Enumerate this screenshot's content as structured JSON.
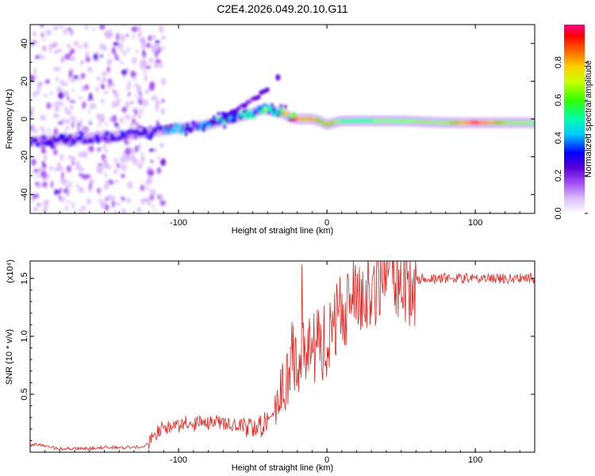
{
  "title": "C2E4.2026.049.20.10.G11",
  "chart_data": [
    {
      "type": "heatmap",
      "title": "C2E4.2026.049.20.10.G11",
      "xlabel": "Height of straight line (km)",
      "ylabel": "Frequency (Hz)",
      "xlim": [
        -200,
        140
      ],
      "ylim": [
        -50,
        50
      ],
      "xticks": [
        -100,
        0,
        100
      ],
      "xtick_labels": [
        "-100",
        "0",
        "100"
      ],
      "yticks": [
        -40,
        -20,
        0,
        20,
        40
      ],
      "ytick_labels": [
        "-40",
        "-20",
        "0",
        "20",
        "40"
      ],
      "colorbar": {
        "label": "Normalized spectral amplitude",
        "range": [
          0,
          1
        ],
        "ticks": [
          0.0,
          0.2,
          0.4,
          0.6,
          0.8
        ],
        "tick_labels": [
          "0.0",
          "0.2",
          "0.4",
          "0.6",
          "0.8"
        ],
        "colormap": [
          "#ffffff",
          "#b27cf5",
          "#5a00d8",
          "#0000ff",
          "#00ffff",
          "#00ff55",
          "#aaff00",
          "#ffff00",
          "#ff7f00",
          "#ff0000",
          "#ff0080"
        ]
      },
      "ridge": {
        "x": [
          -200,
          -180,
          -160,
          -140,
          -120,
          -100,
          -90,
          -80,
          -70,
          -60,
          -50,
          -45,
          -40,
          -35,
          -30,
          -25,
          -20,
          -15,
          -10,
          -5,
          0,
          10,
          30,
          50,
          80,
          100,
          120,
          140
        ],
        "frequency": [
          -12,
          -11,
          -10,
          -9,
          -7,
          -5,
          -4,
          -3,
          -1,
          1,
          3,
          5,
          5,
          4,
          3,
          1,
          0,
          0,
          0,
          -1,
          -3,
          -1,
          -1,
          -1,
          -2,
          -2,
          -2,
          -2
        ],
        "amplitude": [
          0.28,
          0.3,
          0.3,
          0.3,
          0.32,
          0.36,
          0.38,
          0.4,
          0.42,
          0.44,
          0.48,
          0.55,
          0.6,
          0.6,
          0.62,
          0.7,
          0.8,
          0.7,
          0.8,
          0.6,
          0.7,
          0.5,
          0.5,
          0.52,
          0.55,
          0.9,
          0.6,
          0.5
        ]
      },
      "branch": {
        "x": [
          -70,
          -60,
          -55,
          -50,
          -45,
          -40
        ],
        "frequency": [
          2,
          5,
          7,
          10,
          13,
          16
        ]
      },
      "noise_region": {
        "x_range": [
          -200,
          -120
        ],
        "amplitude_max": 0.25
      }
    },
    {
      "type": "line",
      "xlabel": "Height of straight line (km)",
      "ylabel": "SNR (10 * v/v)",
      "y_scale_label": "(x10⁴)",
      "xlim": [
        -200,
        140
      ],
      "ylim": [
        0,
        1.65
      ],
      "xticks": [
        -100,
        0,
        100
      ],
      "xtick_labels": [
        "-100",
        "0",
        "100"
      ],
      "yticks": [
        0.5,
        1.0,
        1.5
      ],
      "ytick_labels": [
        "0.5",
        "1.0",
        "1.5"
      ],
      "series": [
        {
          "name": "SNR",
          "color": "#e8231f",
          "x": [
            -200,
            -195,
            -190,
            -180,
            -170,
            -160,
            -150,
            -140,
            -130,
            -125,
            -120,
            -115,
            -110,
            -105,
            -100,
            -95,
            -90,
            -85,
            -80,
            -75,
            -70,
            -65,
            -60,
            -55,
            -50,
            -45,
            -40,
            -35,
            -30,
            -27,
            -24,
            -21,
            -18,
            -15,
            -10,
            -5,
            0,
            5,
            10,
            15,
            20,
            30,
            40,
            50,
            60,
            80,
            100,
            120,
            140
          ],
          "y": [
            0.06,
            0.07,
            0.05,
            0.03,
            0.03,
            0.03,
            0.04,
            0.04,
            0.04,
            0.05,
            0.07,
            0.14,
            0.2,
            0.18,
            0.2,
            0.22,
            0.21,
            0.24,
            0.22,
            0.24,
            0.22,
            0.21,
            0.2,
            0.2,
            0.19,
            0.22,
            0.28,
            0.35,
            0.55,
            0.6,
            0.85,
            0.75,
            0.8,
            0.9,
            0.88,
            0.92,
            1.0,
            1.1,
            1.2,
            1.3,
            1.38,
            1.45,
            1.5,
            1.52,
            1.5,
            1.5,
            1.5,
            1.5,
            1.5
          ],
          "spike_bands": [
            {
              "x_range": [
                -60,
                -40
              ],
              "amp": 0.1
            },
            {
              "x_range": [
                -35,
                -10
              ],
              "amp": 0.3
            },
            {
              "x_range": [
                -10,
                20
              ],
              "amp": 0.35
            },
            {
              "x_range": [
                20,
                60
              ],
              "amp": 0.4
            },
            {
              "x_range": [
                60,
                140
              ],
              "amp": 0.05
            }
          ],
          "peak": {
            "x": -17,
            "y": 1.62
          }
        }
      ]
    }
  ]
}
